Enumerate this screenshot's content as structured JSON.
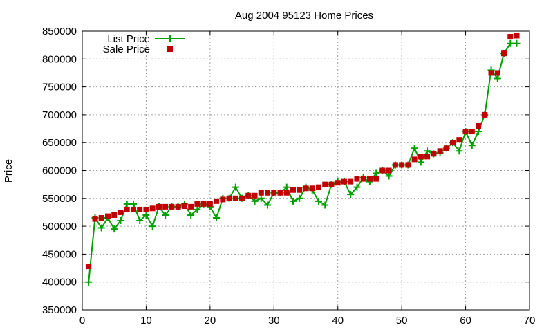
{
  "chart_data": {
    "type": "line",
    "title": "Aug 2004 95123 Home Prices",
    "xlabel": "",
    "ylabel": "Price",
    "xlim": [
      0,
      70
    ],
    "ylim": [
      350000,
      850000
    ],
    "x_ticks": [
      0,
      10,
      20,
      30,
      40,
      50,
      60,
      70
    ],
    "y_ticks": [
      350000,
      400000,
      450000,
      500000,
      550000,
      600000,
      650000,
      700000,
      750000,
      800000,
      850000
    ],
    "grid": true,
    "legend_position": "top-left",
    "x": [
      1,
      2,
      3,
      4,
      5,
      6,
      7,
      8,
      9,
      10,
      11,
      12,
      13,
      14,
      15,
      16,
      17,
      18,
      19,
      20,
      21,
      22,
      23,
      24,
      25,
      26,
      27,
      28,
      29,
      30,
      31,
      32,
      33,
      34,
      35,
      36,
      37,
      38,
      39,
      40,
      41,
      42,
      43,
      44,
      45,
      46,
      47,
      48,
      49,
      50,
      51,
      52,
      53,
      54,
      55,
      56,
      57,
      58,
      59,
      60,
      61,
      62,
      63,
      64,
      65,
      66,
      67,
      68
    ],
    "series": [
      {
        "name": "List Price",
        "style": "line-cross",
        "color": "#00a000",
        "values": [
          400000,
          515000,
          497000,
          515000,
          495000,
          510000,
          540000,
          540000,
          510000,
          520000,
          500000,
          535000,
          520000,
          535000,
          535000,
          540000,
          520000,
          530000,
          540000,
          535000,
          515000,
          550000,
          550000,
          570000,
          550000,
          555000,
          545000,
          550000,
          538000,
          560000,
          560000,
          570000,
          545000,
          550000,
          570000,
          565000,
          545000,
          538000,
          575000,
          580000,
          580000,
          557000,
          570000,
          587000,
          580000,
          595000,
          600000,
          590000,
          610000,
          610000,
          610000,
          640000,
          615000,
          635000,
          630000,
          632000,
          640000,
          650000,
          635000,
          670000,
          645000,
          670000,
          700000,
          780000,
          765000,
          810000,
          828000,
          828000
        ]
      },
      {
        "name": "Sale Price",
        "style": "points-square",
        "color": "#c00000",
        "values": [
          428000,
          513000,
          515000,
          518000,
          520000,
          525000,
          530000,
          530000,
          530000,
          530000,
          532000,
          535000,
          535000,
          535000,
          535000,
          536000,
          535000,
          540000,
          540000,
          540000,
          545000,
          548000,
          550000,
          550000,
          550000,
          555000,
          555000,
          560000,
          560000,
          560000,
          560000,
          560000,
          565000,
          565000,
          568000,
          568000,
          570000,
          575000,
          575000,
          578000,
          580000,
          580000,
          585000,
          585000,
          585000,
          585000,
          600000,
          600000,
          610000,
          610000,
          610000,
          620000,
          625000,
          625000,
          630000,
          635000,
          640000,
          650000,
          655000,
          670000,
          670000,
          680000,
          700000,
          775000,
          775000,
          810000,
          840000,
          842000
        ]
      }
    ]
  }
}
